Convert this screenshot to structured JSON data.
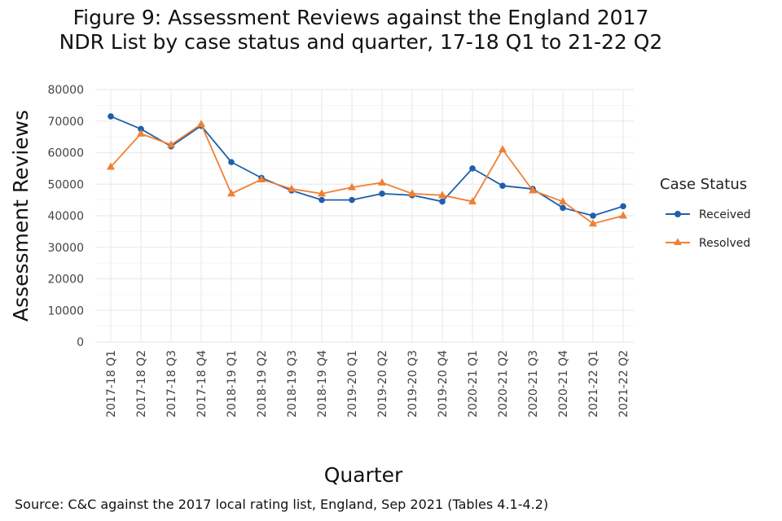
{
  "title_lines": [
    "Figure 9: Assessment Reviews against the England 2017",
    "NDR List by case status and quarter, 17-18 Q1 to 21-22 Q2"
  ],
  "caption": "Source: C&C against the 2017 local rating list, England, Sep 2021 (Tables 4.1-4.2)",
  "chart_data": {
    "type": "line",
    "title": "Figure 9: Assessment Reviews against the England 2017 NDR List by case status and quarter, 17-18 Q1 to 21-22 Q2",
    "xlabel": "Quarter",
    "ylabel": "Assessment Reviews",
    "ylim": [
      0,
      80000
    ],
    "yticks": [
      0,
      10000,
      20000,
      30000,
      40000,
      50000,
      60000,
      70000,
      80000
    ],
    "ytick_labels": [
      "0",
      "10000",
      "20000",
      "30000",
      "40000",
      "50000",
      "60000",
      "70000",
      "80000"
    ],
    "grid": true,
    "legend": {
      "title": "Case Status",
      "placement": "right"
    },
    "categories": [
      "2017-18 Q1",
      "2017-18 Q2",
      "2017-18 Q3",
      "2017-18 Q4",
      "2018-19 Q1",
      "2018-19 Q2",
      "2018-19 Q3",
      "2018-19 Q4",
      "2019-20 Q1",
      "2019-20 Q2",
      "2019-20 Q3",
      "2019-20 Q4",
      "2020-21 Q1",
      "2020-21 Q2",
      "2020-21 Q3",
      "2020-21 Q4",
      "2021-22 Q1",
      "2021-22 Q2"
    ],
    "series": [
      {
        "name": "Received",
        "color": "#1f5fa8",
        "marker": "circle",
        "values": [
          71500,
          67500,
          62000,
          68500,
          57000,
          52000,
          48000,
          45000,
          45000,
          47000,
          46500,
          44500,
          55000,
          49500,
          48500,
          42500,
          40000,
          43000
        ]
      },
      {
        "name": "Resolved",
        "color": "#f08035",
        "marker": "triangle",
        "values": [
          55500,
          66000,
          62500,
          69000,
          47000,
          51500,
          48500,
          47000,
          49000,
          50500,
          47000,
          46500,
          44500,
          61000,
          48000,
          44500,
          37500,
          40000
        ]
      }
    ]
  }
}
